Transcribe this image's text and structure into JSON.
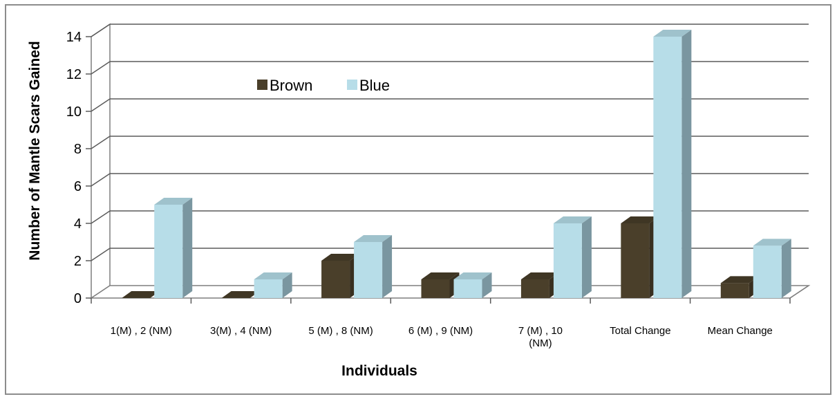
{
  "chart_data": {
    "type": "bar",
    "style": "3d-clustered-column",
    "categories": [
      [
        "1(M) , 2 (NM)"
      ],
      [
        "3(M) , 4 (NM)"
      ],
      [
        "5 (M) , 8 (NM)"
      ],
      [
        "6 (M) , 9 (NM)"
      ],
      [
        "7 (M) , 10",
        "(NM)"
      ],
      [
        "Total Change"
      ],
      [
        "Mean Change"
      ]
    ],
    "series": [
      {
        "name": "Brown",
        "color": "#4a3f2a",
        "values": [
          0,
          0,
          2,
          1,
          1,
          4,
          0.8
        ]
      },
      {
        "name": "Blue",
        "color": "#b7dde8",
        "values": [
          5,
          1,
          3,
          1,
          4,
          14,
          2.8
        ]
      }
    ],
    "xlabel": "Individuals",
    "ylabel": "Number of Mantle Scars Gained",
    "ylim": [
      0,
      14
    ],
    "yticks": [
      "0",
      "2",
      "4",
      "6",
      "8",
      "10",
      "12",
      "14"
    ],
    "grid": true,
    "legend_position": "top-left, inside plot"
  }
}
